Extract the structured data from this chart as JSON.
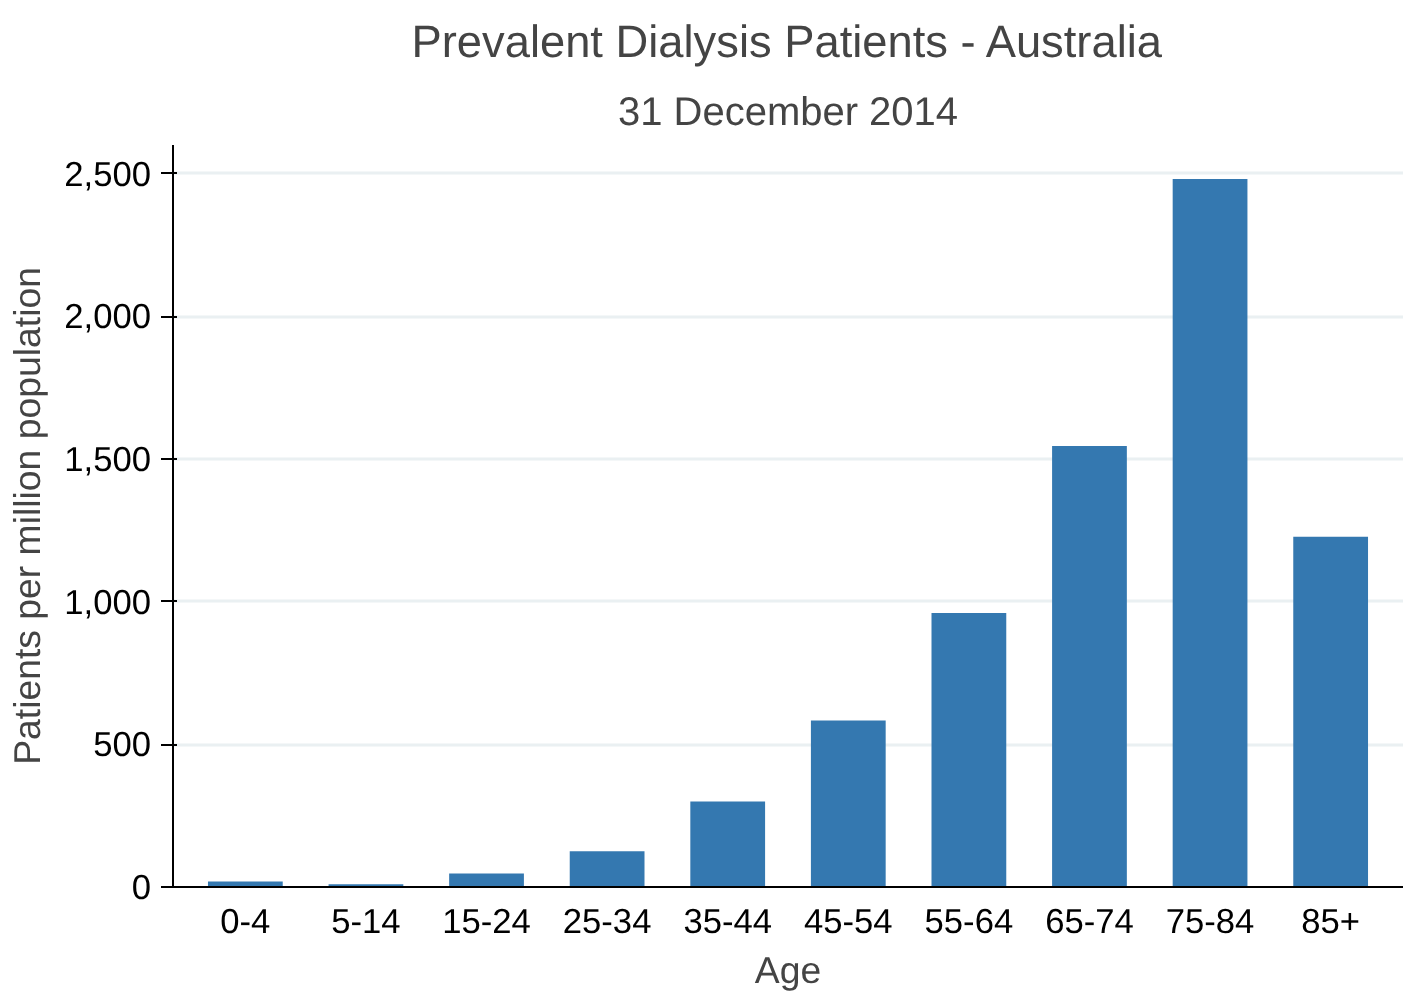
{
  "chart_data": {
    "type": "bar",
    "title": "Prevalent Dialysis Patients - Australia",
    "subtitle": "31 December 2014",
    "xlabel": "Age",
    "ylabel": "Patients per million population",
    "categories": [
      "0-4",
      "5-14",
      "15-24",
      "25-34",
      "35-44",
      "45-54",
      "55-64",
      "65-74",
      "75-84",
      "85+"
    ],
    "values": [
      19,
      10,
      47,
      125,
      300,
      583,
      960,
      1545,
      2481,
      1227
    ],
    "color": "#3478b0",
    "ylim": [
      0,
      2600
    ],
    "yticks": [
      0,
      500,
      {
        "value": 1000,
        "label": "1,000"
      },
      {
        "value": 1500,
        "label": "1,500"
      },
      {
        "value": 2000,
        "label": "2,000"
      },
      {
        "value": 2500,
        "label": "2,500"
      }
    ],
    "grid": "y"
  }
}
